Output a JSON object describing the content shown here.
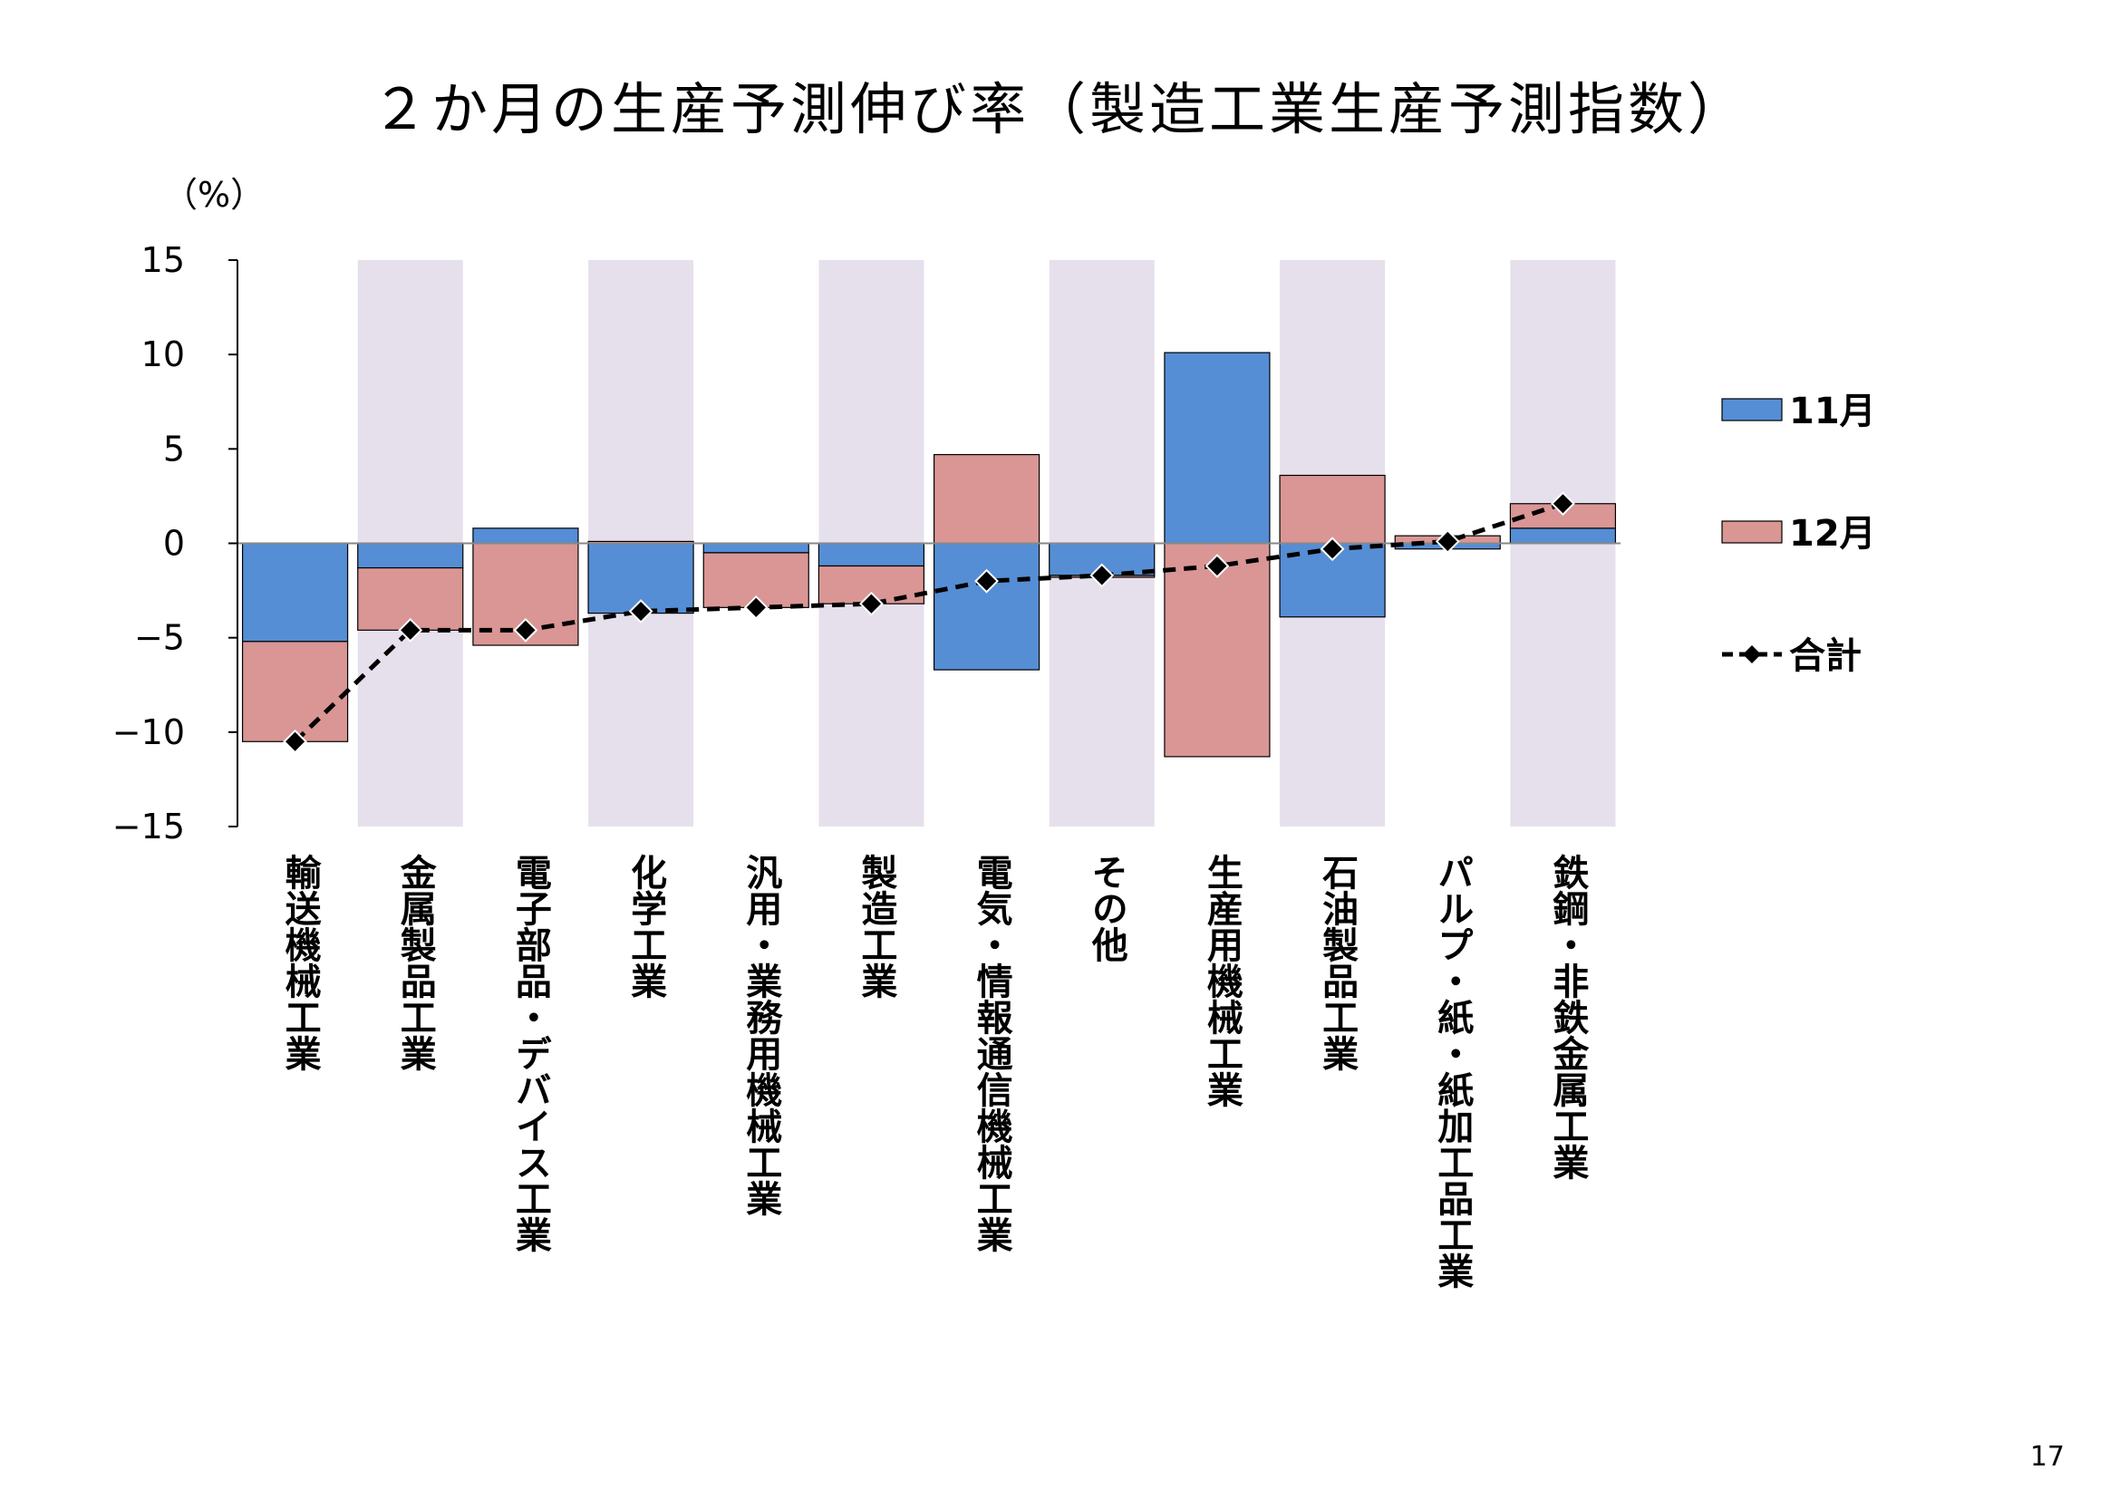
{
  "title": "２か月の生産予測伸び率（製造工業生産予測指数）",
  "page_number": "17",
  "chart_data": {
    "type": "bar",
    "stacked": true,
    "title": "２か月の生産予測伸び率（製造工業生産予測指数）",
    "ylabel": "（%）",
    "ylim": [
      -15,
      15
    ],
    "yticks": [
      15,
      10,
      5,
      0,
      -5,
      -10,
      -15
    ],
    "ytick_labels": [
      "15",
      "10",
      "5",
      "0",
      "−5",
      "−10",
      "−15"
    ],
    "categories": [
      "輸送機械工業",
      "金属製品工業",
      "電子部品・デバイス工業",
      "化学工業",
      "汎用・業務用機械工業",
      "製造工業",
      "電気・情報通信機械工業",
      "その他",
      "生産用機械工業",
      "石油製品工業",
      "パルプ・紙・紙加工品工業",
      "鉄鋼・非鉄金属工業"
    ],
    "series": [
      {
        "name": "11月",
        "type": "bar",
        "color": "#558ED5",
        "values": [
          -5.2,
          -1.3,
          0.8,
          -3.7,
          -0.5,
          -1.2,
          -6.7,
          -1.7,
          10.1,
          -3.9,
          -0.3,
          0.8
        ]
      },
      {
        "name": "12月",
        "type": "bar",
        "color": "#D99694",
        "values": [
          -5.3,
          -3.3,
          -5.4,
          0.1,
          -2.9,
          -2.0,
          4.7,
          -0.1,
          -11.3,
          3.6,
          0.4,
          1.3
        ]
      },
      {
        "name": "合計",
        "type": "line",
        "color": "#000000",
        "values": [
          -10.5,
          -4.6,
          -4.6,
          -3.6,
          -3.4,
          -3.2,
          -2.0,
          -1.7,
          -1.2,
          -0.3,
          0.1,
          2.1
        ]
      }
    ],
    "legend": [
      "11月",
      "12月",
      "合計"
    ],
    "legend_position": "right"
  }
}
